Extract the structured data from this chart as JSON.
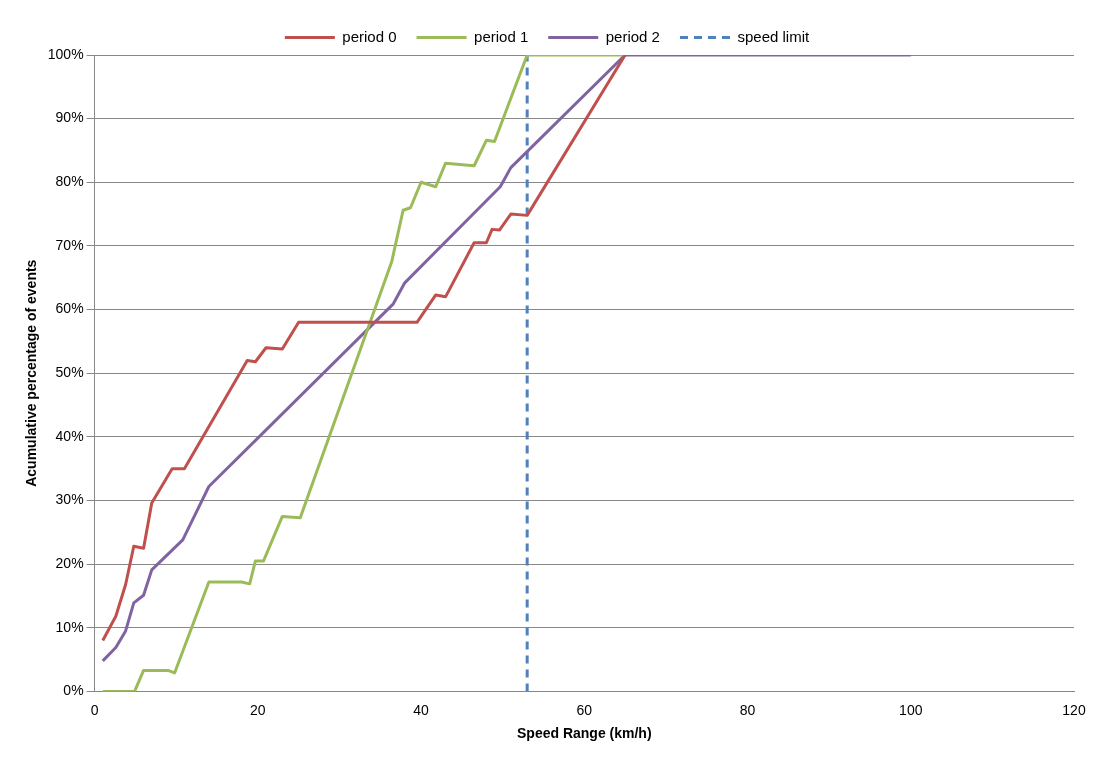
{
  "chart_data": {
    "type": "line",
    "xlabel": "Speed Range (km/h)",
    "ylabel": "Acumulative percentage of events",
    "xlim": [
      0,
      120
    ],
    "xticks": [
      0,
      20,
      40,
      60,
      80,
      100,
      120
    ],
    "ylim": [
      0,
      100
    ],
    "yticks": [
      {
        "value": 0,
        "label": "0%"
      },
      {
        "value": 10,
        "label": "10%"
      },
      {
        "value": 20,
        "label": "20%"
      },
      {
        "value": 30,
        "label": "30%"
      },
      {
        "value": 40,
        "label": "40%"
      },
      {
        "value": 50,
        "label": "50%"
      },
      {
        "value": 60,
        "label": "60%"
      },
      {
        "value": 70,
        "label": "70%"
      },
      {
        "value": 80,
        "label": "80%"
      },
      {
        "value": 90,
        "label": "90%"
      },
      {
        "value": 100,
        "label": "100%"
      }
    ],
    "grid": "y",
    "legend": "top",
    "marker": "none",
    "line_style": "solid",
    "series": [
      {
        "name": "period 0",
        "color": "#c0504d",
        "x": [
          1,
          2.6,
          3.8,
          4.8,
          6,
          7,
          9.5,
          11,
          18.7,
          19.7,
          21,
          23,
          25,
          39.5,
          41.8,
          43,
          46.5,
          48,
          48.7,
          49.6,
          51,
          53,
          65
        ],
        "values": [
          8,
          11.8,
          16.8,
          22.8,
          22.5,
          29.6,
          35,
          35,
          52,
          51.8,
          54,
          53.8,
          58,
          58,
          62.3,
          62,
          70.5,
          70.5,
          72.6,
          72.5,
          75,
          74.8,
          100
        ]
      },
      {
        "name": "period 1",
        "color": "#9bbb59",
        "x": [
          1,
          4.9,
          6,
          9,
          9.8,
          14,
          18,
          19,
          19.7,
          20.7,
          23,
          25.2,
          36.4,
          37.8,
          38.7,
          40,
          41.8,
          43,
          46.5,
          48,
          49,
          53,
          65
        ],
        "values": [
          0,
          0,
          3.3,
          3.3,
          2.9,
          17.2,
          17.2,
          16.9,
          20.5,
          20.5,
          27.5,
          27.3,
          67.5,
          75.6,
          76,
          80,
          79.3,
          83,
          82.6,
          86.6,
          86.4,
          100,
          100
        ]
      },
      {
        "name": "period 2",
        "color": "#8064a2",
        "x": [
          1,
          2.6,
          3.8,
          4.8,
          6,
          7,
          10.8,
          14,
          36.6,
          38,
          49.7,
          51,
          65,
          100
        ],
        "values": [
          4.8,
          6.9,
          9.5,
          13.9,
          15.1,
          19.1,
          23.8,
          32.2,
          60.9,
          64.2,
          79.3,
          82.3,
          100,
          100
        ]
      }
    ],
    "ref_lines": [
      {
        "axis": "x",
        "value": 53,
        "label": "speed limit",
        "color": "#4f81bd",
        "line_style": "dashed"
      }
    ]
  }
}
